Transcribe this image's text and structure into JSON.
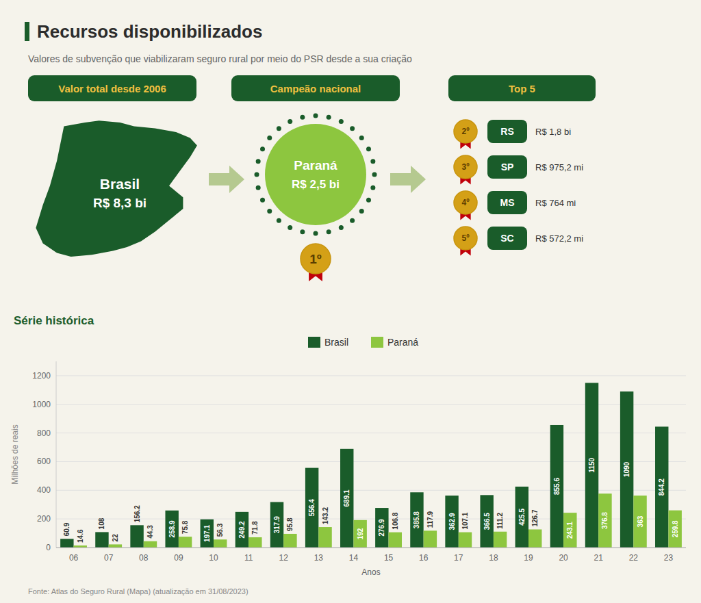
{
  "chart_data": {
    "type": "bar",
    "title": "Recursos disponibilizados",
    "subtitle": "Valores de subvenção que viabilizaram seguro rural por meio do PSR desde a sua criação",
    "annotations": [
      "Valor total desde 2006",
      "Campeão nacional",
      "Top 5",
      "Brasil",
      "R$ 8,3 bi",
      "Paraná",
      "R$ 2,5 bi",
      "1º",
      "2º",
      "RS",
      "R$ 1,8 bi",
      "3º",
      "SP",
      "R$ 975,2 mi",
      "4º",
      "MS",
      "R$ 764 mi",
      "5º",
      "SC",
      "R$ 572,2 mi",
      "Série histórica",
      "Fonte: Atlas do Seguro Rural (Mapa) (atualização em 31/08/2023)"
    ],
    "x_label": "Anos",
    "y_label": "Milhões de reais",
    "categories": [
      "06",
      "07",
      "08",
      "09",
      "10",
      "11",
      "12",
      "13",
      "14",
      "15",
      "16",
      "17",
      "18",
      "19",
      "20",
      "21",
      "22",
      "23"
    ],
    "series": [
      {
        "name": "Brasil",
        "color": "#1a5c2a",
        "values": [
          60.9,
          108,
          156.2,
          258.9,
          197.1,
          249.2,
          317.9,
          556.4,
          689.1,
          276.9,
          385.8,
          362.9,
          366.5,
          425.5,
          855.6,
          1150,
          1090,
          844.2
        ]
      },
      {
        "name": "Paraná",
        "color": "#8dc63f",
        "values": [
          14.6,
          22,
          44.3,
          75.8,
          56.3,
          71.8,
          95.8,
          143.2,
          192,
          106.8,
          117.9,
          107.1,
          111.2,
          126.7,
          243.1,
          376.8,
          363,
          259.8
        ]
      }
    ],
    "ylim": [
      0,
      1300
    ],
    "yticks": [
      0,
      200,
      400,
      600,
      800,
      1000,
      1200
    ],
    "grid": true,
    "legend": "top",
    "data_labels": true
  }
}
